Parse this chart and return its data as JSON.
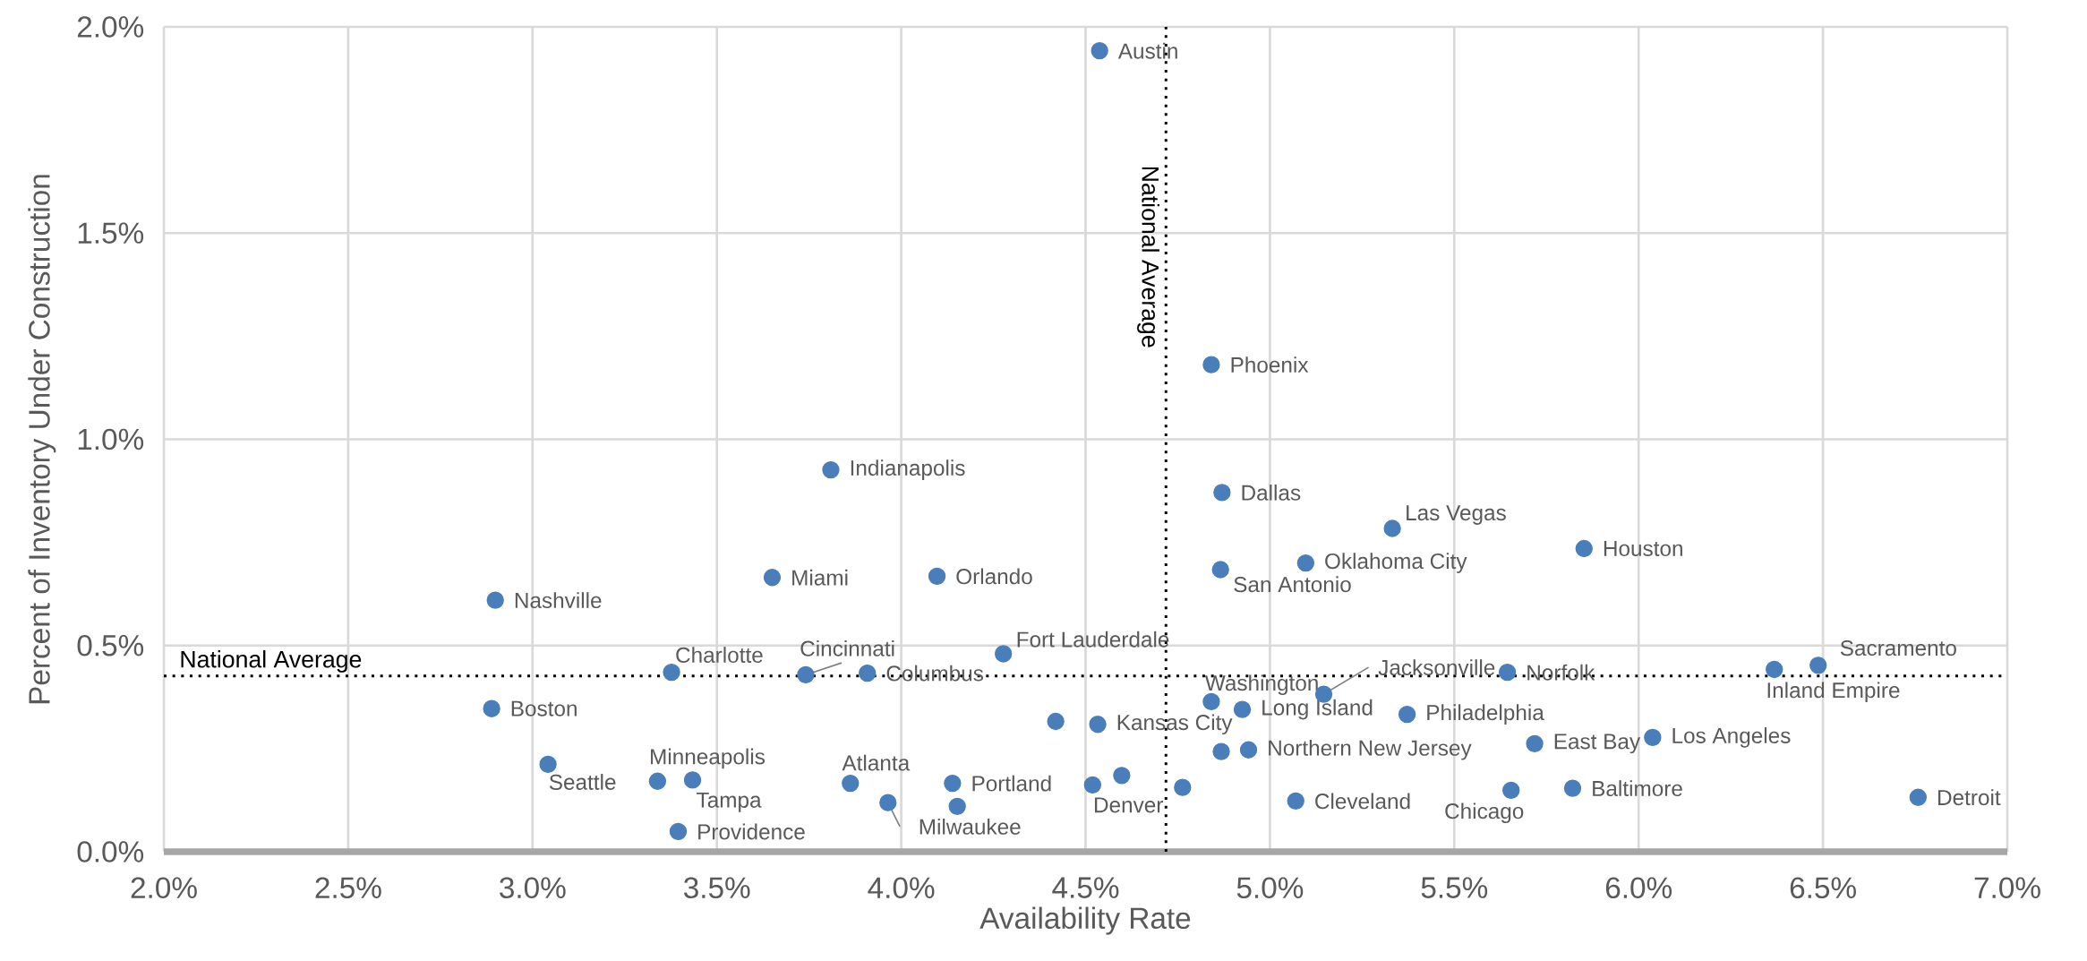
{
  "chart_data": {
    "type": "scatter",
    "xlabel": "Availability Rate",
    "ylabel": "Percent of Inventory Under Construction",
    "xlim": [
      2.0,
      7.0
    ],
    "ylim": [
      0.0,
      2.0
    ],
    "xticks": [
      {
        "value": 2.0,
        "label": "2.0%"
      },
      {
        "value": 2.5,
        "label": "2.5%"
      },
      {
        "value": 3.0,
        "label": "3.0%"
      },
      {
        "value": 3.5,
        "label": "3.5%"
      },
      {
        "value": 4.0,
        "label": "4.0%"
      },
      {
        "value": 4.5,
        "label": "4.5%"
      },
      {
        "value": 5.0,
        "label": "5.0%"
      },
      {
        "value": 5.5,
        "label": "5.5%"
      },
      {
        "value": 6.0,
        "label": "6.0%"
      },
      {
        "value": 6.5,
        "label": "6.5%"
      },
      {
        "value": 7.0,
        "label": "7.0%"
      }
    ],
    "yticks": [
      {
        "value": 0.0,
        "label": "0.0%"
      },
      {
        "value": 0.5,
        "label": "0.5%"
      },
      {
        "value": 1.0,
        "label": "1.0%"
      },
      {
        "value": 1.5,
        "label": "1.5%"
      },
      {
        "value": 2.0,
        "label": "2.0%"
      }
    ],
    "grid": true,
    "marker": "circle",
    "series": [
      {
        "color": "#4a7ebb",
        "x": [
          4.538,
          4.841,
          3.809,
          4.87,
          5.332,
          5.852,
          5.097,
          4.866,
          3.65,
          4.097,
          2.899,
          4.277,
          6.487,
          6.368,
          5.644,
          3.377,
          3.741,
          3.908,
          5.146,
          4.841,
          4.925,
          5.372,
          2.889,
          4.533,
          6.038,
          5.718,
          4.942,
          3.042,
          3.339,
          3.434,
          3.862,
          4.139,
          5.654,
          5.821,
          6.758,
          5.07,
          3.964,
          3.395,
          4.519,
          4.419,
          4.598,
          4.763,
          4.868,
          4.152
        ],
        "values": [
          1.942,
          1.181,
          0.926,
          0.871,
          0.784,
          0.735,
          0.7,
          0.684,
          0.665,
          0.668,
          0.61,
          0.48,
          0.452,
          0.442,
          0.435,
          0.435,
          0.429,
          0.433,
          0.382,
          0.364,
          0.345,
          0.333,
          0.347,
          0.309,
          0.277,
          0.262,
          0.247,
          0.212,
          0.171,
          0.174,
          0.166,
          0.166,
          0.149,
          0.154,
          0.132,
          0.123,
          0.119,
          0.049,
          0.162,
          0.316,
          0.185,
          0.156,
          0.243,
          0.11
        ]
      }
    ],
    "annotations": [
      {
        "text": "Austin",
        "x": 4.538,
        "y": 1.942
      },
      {
        "text": "Phoenix",
        "x": 4.841,
        "y": 1.181
      },
      {
        "text": "Indianapolis",
        "x": 3.809,
        "y": 0.926
      },
      {
        "text": "Dallas",
        "x": 4.87,
        "y": 0.871
      },
      {
        "text": "Las Vegas",
        "x": 5.332,
        "y": 0.784
      },
      {
        "text": "Houston",
        "x": 5.852,
        "y": 0.735
      },
      {
        "text": "Oklahoma City",
        "x": 5.097,
        "y": 0.7
      },
      {
        "text": "San Antonio",
        "x": 4.866,
        "y": 0.684
      },
      {
        "text": "Miami",
        "x": 3.65,
        "y": 0.665
      },
      {
        "text": "Orlando",
        "x": 4.097,
        "y": 0.668
      },
      {
        "text": "Nashville",
        "x": 2.899,
        "y": 0.61
      },
      {
        "text": "Fort Lauderdale",
        "x": 4.277,
        "y": 0.48
      },
      {
        "text": "Sacramento",
        "x": 6.487,
        "y": 0.452
      },
      {
        "text": "Inland Empire",
        "x": 6.368,
        "y": 0.442
      },
      {
        "text": "Norfolk",
        "x": 5.644,
        "y": 0.435
      },
      {
        "text": "Charlotte",
        "x": 3.377,
        "y": 0.435
      },
      {
        "text": "Cincinnati",
        "x": 3.741,
        "y": 0.429
      },
      {
        "text": "Columbus",
        "x": 3.908,
        "y": 0.433
      },
      {
        "text": "Jacksonville",
        "x": 5.146,
        "y": 0.382
      },
      {
        "text": "Washington",
        "x": 4.841,
        "y": 0.364
      },
      {
        "text": "Long Island",
        "x": 4.925,
        "y": 0.345
      },
      {
        "text": "Philadelphia",
        "x": 5.372,
        "y": 0.333
      },
      {
        "text": "Boston",
        "x": 2.889,
        "y": 0.347
      },
      {
        "text": "Kansas City",
        "x": 4.533,
        "y": 0.309
      },
      {
        "text": "Los Angeles",
        "x": 6.038,
        "y": 0.277
      },
      {
        "text": "East Bay",
        "x": 5.718,
        "y": 0.262
      },
      {
        "text": "Northern New Jersey",
        "x": 4.942,
        "y": 0.247
      },
      {
        "text": "Seattle",
        "x": 3.042,
        "y": 0.212
      },
      {
        "text": "Minneapolis",
        "x": 3.339,
        "y": 0.171
      },
      {
        "text": "Tampa",
        "x": 3.434,
        "y": 0.174
      },
      {
        "text": "Atlanta",
        "x": 3.862,
        "y": 0.166
      },
      {
        "text": "Portland",
        "x": 4.139,
        "y": 0.166
      },
      {
        "text": "Chicago",
        "x": 5.654,
        "y": 0.149
      },
      {
        "text": "Baltimore",
        "x": 5.821,
        "y": 0.154
      },
      {
        "text": "Detroit",
        "x": 6.758,
        "y": 0.132
      },
      {
        "text": "Cleveland",
        "x": 5.07,
        "y": 0.123
      },
      {
        "text": "Milwaukee",
        "x": 3.964,
        "y": 0.119
      },
      {
        "text": "Providence",
        "x": 3.395,
        "y": 0.049
      },
      {
        "text": "Denver",
        "x": 4.519,
        "y": 0.162
      }
    ],
    "ref_lines": [
      {
        "axis": "x",
        "value": 4.718,
        "label": "National Average",
        "color": "#000000",
        "line_style": "dotted"
      },
      {
        "axis": "y",
        "value": 0.426,
        "label": "National Average",
        "color": "#000000",
        "line_style": "dotted"
      }
    ]
  }
}
